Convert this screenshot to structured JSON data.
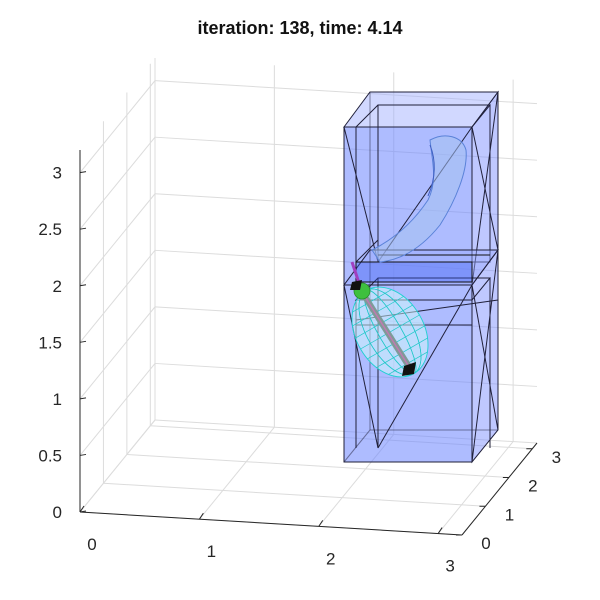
{
  "chart_data": {
    "type": "3d-scatter",
    "title": "iteration: 138, time: 4.14",
    "xlabel": "",
    "ylabel": "",
    "zlabel": "",
    "x_ticks": [
      "0",
      "1",
      "2",
      "3"
    ],
    "y_ticks": [
      "0",
      "1",
      "2",
      "3"
    ],
    "z_ticks": [
      "0",
      "0.5",
      "1",
      "1.5",
      "2",
      "2.5",
      "3"
    ],
    "xlim": [
      0,
      3.2
    ],
    "ylim": [
      0,
      3.2
    ],
    "zlim": [
      0,
      3.2
    ],
    "grid": true,
    "colors": {
      "box_fill": "#6f86ff",
      "box_edge": "#1a1a2e",
      "ellipsoid_mesh": "#20d8d8",
      "robot_link": "#7a9a9a",
      "joint_ball": "#3ec03e",
      "ghost_robot": "#7fa7e6",
      "end_marker": "#a040c0"
    }
  }
}
